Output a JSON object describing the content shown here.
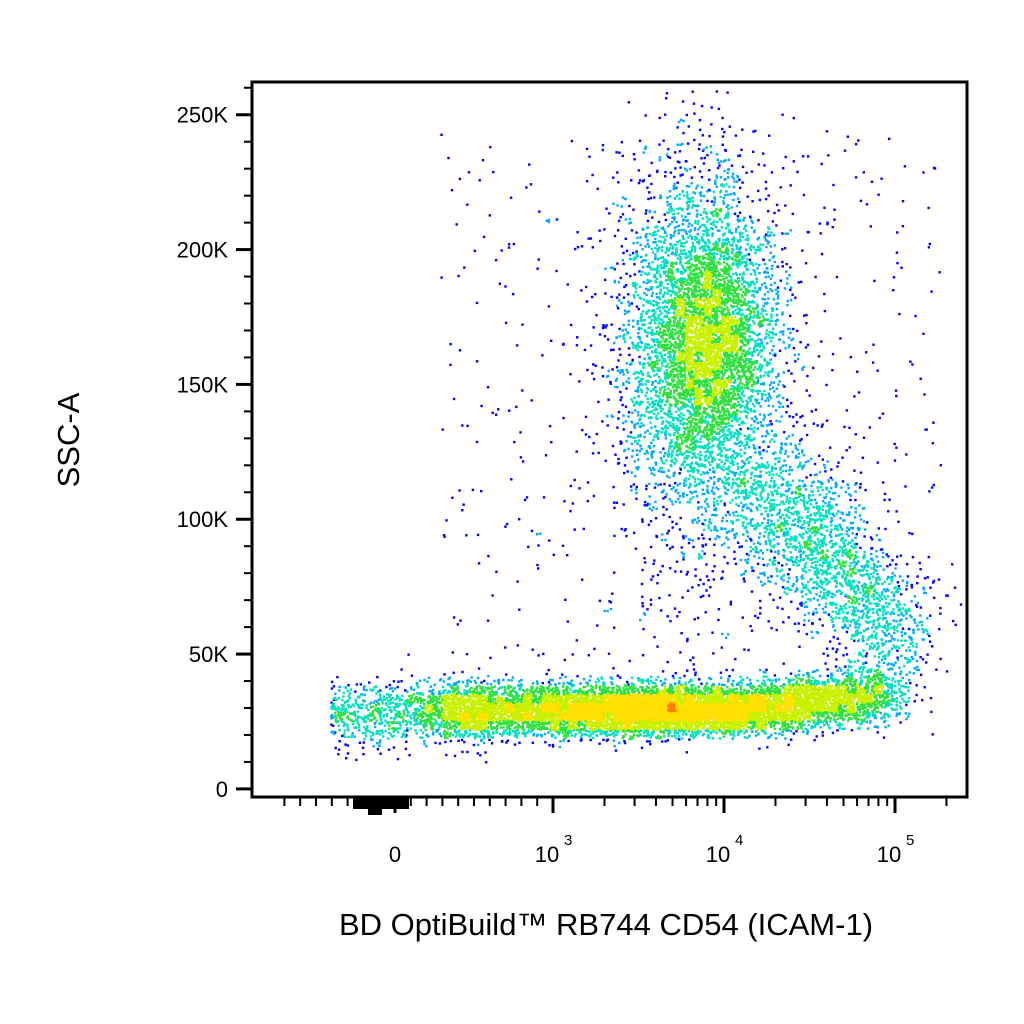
{
  "chart_data": {
    "type": "scatter",
    "title": "",
    "xlabel": "BD OptiBuild™ RB744 CD54 (ICAM-1)",
    "ylabel": "SSC-A",
    "x_scale": "biexponential",
    "xlim": [
      -1000,
      200000
    ],
    "ylim": [
      -3000,
      262144
    ],
    "x_ticks": [
      {
        "value": 0,
        "label": "0"
      },
      {
        "value": 1000,
        "base": "10",
        "exp": "3"
      },
      {
        "value": 10000,
        "base": "10",
        "exp": "4"
      },
      {
        "value": 100000,
        "base": "10",
        "exp": "5"
      }
    ],
    "y_ticks": [
      {
        "value": 0,
        "label": "0"
      },
      {
        "value": 50000,
        "label": "50K"
      },
      {
        "value": 100000,
        "label": "100K"
      },
      {
        "value": 150000,
        "label": "150K"
      },
      {
        "value": 200000,
        "label": "200K"
      },
      {
        "value": 250000,
        "label": "250K"
      }
    ],
    "grid": false,
    "legend": "none",
    "color_map": "density (blue → cyan → green → yellow → red)",
    "colors": [
      "#0000ff",
      "#00aaff",
      "#00e0c0",
      "#30e040",
      "#c8f000",
      "#ffe000",
      "#ff8000",
      "#ff0000"
    ],
    "populations": [
      {
        "name": "",
        "center": {
          "x": 4000,
          "y": 33000
        },
        "x_range": [
          -200,
          60000
        ],
        "y_range": [
          15000,
          55000
        ]
      },
      {
        "name": "",
        "center": {
          "x": 7000,
          "y": 160000
        },
        "x_range": [
          1000,
          30000
        ],
        "y_range": [
          90000,
          255000
        ]
      },
      {
        "name": "",
        "center": {
          "x": 30000,
          "y": 70000
        },
        "x_range": [
          8000,
          100000
        ],
        "y_range": [
          35000,
          115000
        ]
      }
    ]
  }
}
